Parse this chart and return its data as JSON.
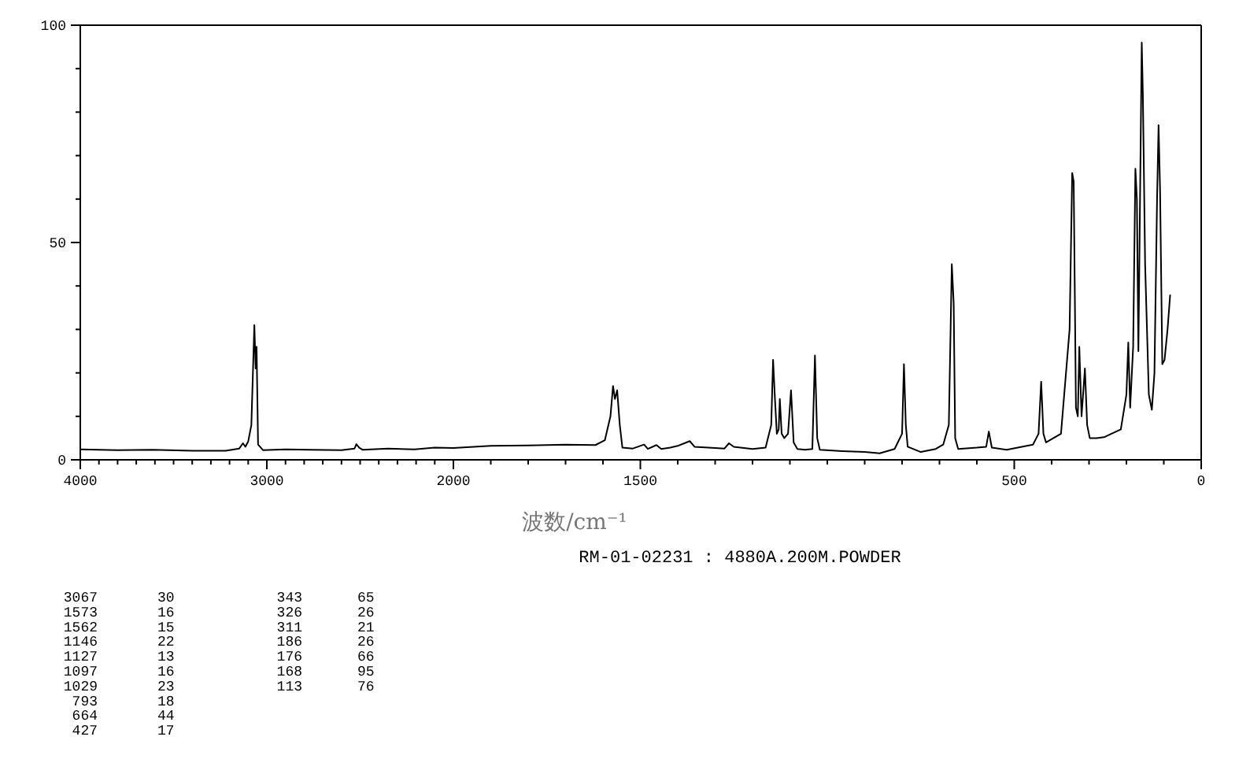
{
  "chart_data": [
    {
      "type": "line",
      "xlim": [
        4000,
        2000
      ],
      "ylim": [
        0,
        100
      ],
      "xticks": [
        4000,
        {
          "value": 3900,
          "label": null
        },
        {
          "value": 3800,
          "label": null
        },
        {
          "value": 3700,
          "label": null
        },
        {
          "value": 3600,
          "label": null
        },
        {
          "value": 3500,
          "label": null
        },
        {
          "value": 3400,
          "label": null
        },
        {
          "value": 3300,
          "label": null
        },
        {
          "value": 3200,
          "label": null
        },
        {
          "value": 3100,
          "label": null
        },
        3000,
        {
          "value": 2900,
          "label": null
        },
        {
          "value": 2800,
          "label": null
        },
        {
          "value": 2700,
          "label": null
        },
        {
          "value": 2600,
          "label": null
        },
        {
          "value": 2500,
          "label": null
        },
        {
          "value": 2400,
          "label": null
        },
        {
          "value": 2300,
          "label": null
        },
        {
          "value": 2200,
          "label": null
        },
        {
          "value": 2100,
          "label": null
        },
        2000
      ],
      "yticks": [
        0,
        {
          "value": 10,
          "label": null
        },
        {
          "value": 20,
          "label": null
        },
        {
          "value": 30,
          "label": null
        },
        {
          "value": 40,
          "label": null
        },
        50,
        {
          "value": 60,
          "label": null
        },
        {
          "value": 70,
          "label": null
        },
        {
          "value": 80,
          "label": null
        },
        {
          "value": 90,
          "label": null
        },
        100
      ],
      "series": [
        {
          "color": "#000000",
          "x": [
            4000,
            3800,
            3612,
            3400,
            3221,
            3148,
            3128,
            3115,
            3100,
            3083,
            3067,
            3060,
            3055,
            3047,
            3020,
            2900,
            2768,
            2600,
            2530,
            2520,
            2505,
            2486,
            2350,
            2208,
            2100,
            2000
          ],
          "values": [
            2.4,
            2.2,
            2.3,
            2.1,
            2.1,
            2.6,
            3.8,
            3.0,
            4.2,
            8,
            31,
            21,
            26,
            3.5,
            2.2,
            2.4,
            2.3,
            2.2,
            2.6,
            3.6,
            2.8,
            2.3,
            2.6,
            2.4,
            2.8,
            2.7
          ]
        }
      ],
      "annotations": [
        "RM-01-02231 : 4880A.200M.POWDER",
        "3067 30",
        "1573 16",
        "1562 15",
        "1146 22",
        "1127 13",
        "1097 16",
        "1029 23",
        "793 18",
        "664 44",
        "427 17",
        "343 65",
        "326 26",
        "311 21",
        "186 26",
        "176 66",
        "168 95",
        "113 76"
      ]
    },
    {
      "type": "line",
      "xlim": [
        2000,
        0
      ],
      "ylim": [
        0,
        100
      ],
      "tick_labels": "x",
      "xlabel": "波数/cm⁻¹",
      "xticks": [
        {
          "value": 1900,
          "label": null
        },
        {
          "value": 1800,
          "label": null
        },
        {
          "value": 1700,
          "label": null
        },
        {
          "value": 1600,
          "label": null
        },
        1500,
        {
          "value": 1400,
          "label": null
        },
        {
          "value": 1300,
          "label": null
        },
        {
          "value": 1200,
          "label": null
        },
        {
          "value": 1100,
          "label": null
        },
        {
          "value": 1000,
          "label": null
        },
        {
          "value": 900,
          "label": null
        },
        {
          "value": 800,
          "label": null
        },
        {
          "value": 700,
          "label": null
        },
        {
          "value": 600,
          "label": null
        },
        500,
        {
          "value": 400,
          "label": null
        },
        {
          "value": 300,
          "label": null
        },
        {
          "value": 200,
          "label": null
        },
        {
          "value": 100,
          "label": null
        },
        0
      ],
      "series": [
        {
          "color": "#000000",
          "x": [
            2000,
            1900,
            1800,
            1700,
            1620,
            1595,
            1580,
            1573,
            1568,
            1562,
            1555,
            1548,
            1520,
            1490,
            1480,
            1457,
            1444,
            1420,
            1400,
            1368,
            1355,
            1300,
            1275,
            1263,
            1250,
            1200,
            1165,
            1150,
            1145,
            1140,
            1135,
            1130,
            1127,
            1122,
            1115,
            1105,
            1097,
            1090,
            1080,
            1060,
            1040,
            1033,
            1027,
            1020,
            960,
            900,
            860,
            820,
            800,
            795,
            790,
            785,
            750,
            710,
            690,
            675,
            667,
            662,
            658,
            650,
            600,
            575,
            568,
            560,
            520,
            480,
            450,
            435,
            428,
            422,
            415,
            395,
            375,
            352,
            345,
            341,
            335,
            330,
            326,
            320,
            311,
            305,
            298,
            280,
            260,
            240,
            215,
            200,
            195,
            190,
            182,
            176,
            172,
            168,
            159,
            156,
            150,
            140,
            132,
            125,
            118,
            114,
            110,
            104,
            98,
            90,
            83
          ],
          "values": [
            2.7,
            3.2,
            3.3,
            3.5,
            3.4,
            4.5,
            10,
            17,
            14,
            16,
            8,
            2.8,
            2.6,
            3.5,
            2.5,
            3.4,
            2.5,
            2.8,
            3.2,
            4.3,
            3.0,
            2.7,
            2.6,
            3.8,
            3.0,
            2.5,
            2.8,
            8,
            23,
            14,
            6,
            7,
            14,
            6,
            5,
            6,
            16,
            4,
            2.5,
            2.3,
            2.5,
            24,
            5,
            2.3,
            2.0,
            1.8,
            1.5,
            2.5,
            6,
            22,
            8,
            3.0,
            1.8,
            2.5,
            3.5,
            8,
            45,
            36,
            5,
            2.5,
            2.8,
            3.0,
            6.5,
            2.8,
            2.3,
            3,
            3.5,
            6,
            18,
            6,
            4,
            5,
            6,
            30,
            66,
            64,
            12,
            10,
            26,
            10,
            21,
            8,
            5,
            5,
            5.2,
            6,
            7,
            15,
            27,
            12,
            26,
            67,
            60,
            25,
            96,
            84,
            45,
            15,
            11.5,
            20,
            60,
            77,
            62,
            22,
            23,
            30,
            38
          ]
        }
      ]
    }
  ]
}
